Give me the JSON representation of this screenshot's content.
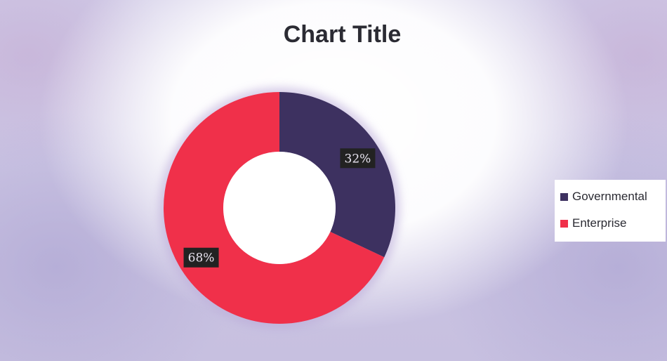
{
  "chart_data": {
    "type": "pie",
    "style": "doughnut",
    "title": "Chart Title",
    "categories": [
      "Governmental",
      "Enterprise"
    ],
    "values": [
      32,
      68
    ],
    "data_labels": [
      "32%",
      "68%"
    ],
    "colors": [
      "#3d3160",
      "#f0304a"
    ],
    "legend_position": "right"
  }
}
